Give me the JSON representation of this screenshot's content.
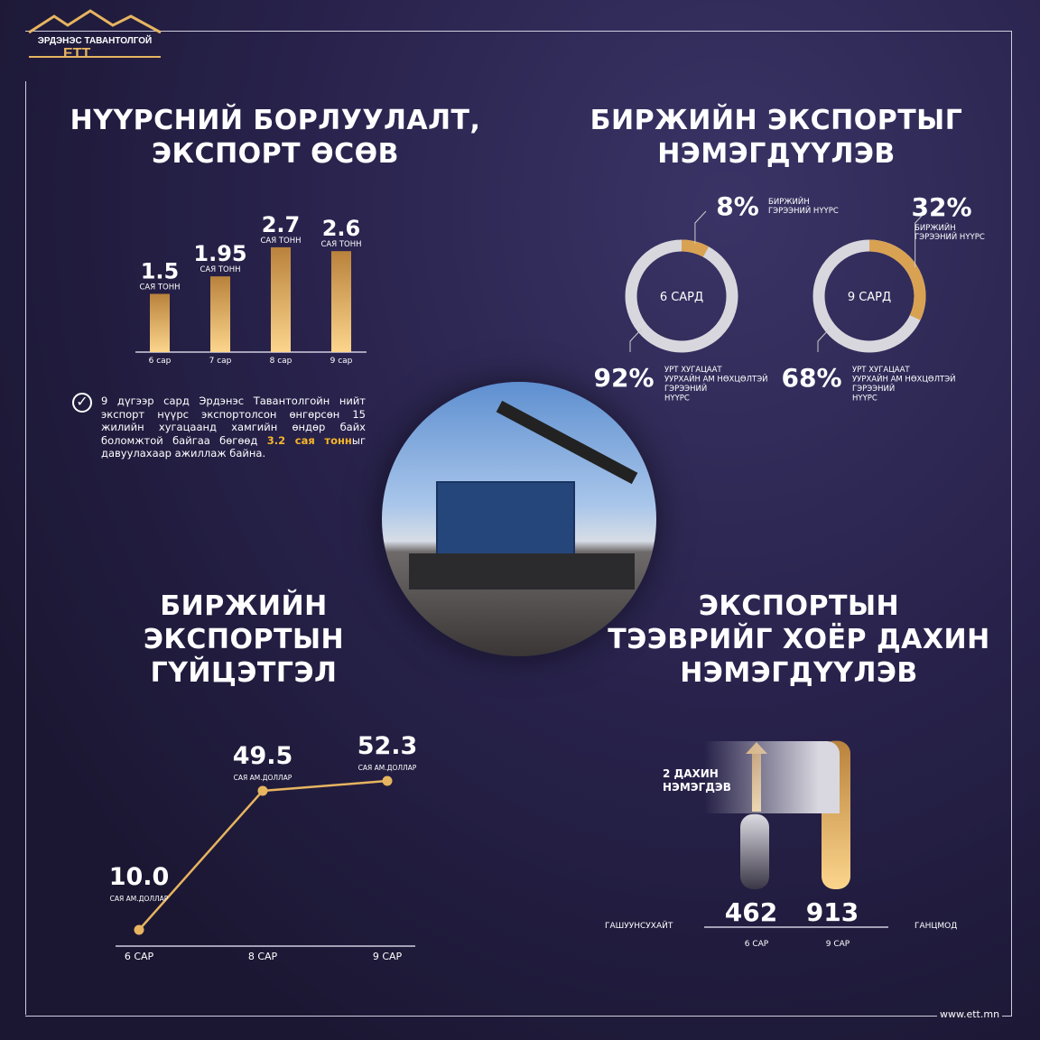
{
  "logo": {
    "name": "ЭРДЭНЭС ТАВАНТОЛГОЙ",
    "abbr": "ЕТТ"
  },
  "colors": {
    "gold": "#e7b460",
    "gold_light": "#fcd58c",
    "gold_dark": "#b9823c",
    "background": "#221d3d",
    "grey": "#c9c8d0"
  },
  "section1": {
    "title_line1": "НҮҮРСНИЙ БОРЛУУЛАЛТ,",
    "title_line2": "ЭКСПОРТ ӨСӨВ",
    "note_before": "9 дүгээр сард Эрдэнэс Тавантолгойн нийт экспорт нүүрс экспортолсон өнгөрсөн 15 жилийн хугацаанд хамгийн өндөр байх боломжтой байгаа бөгөөд ",
    "note_highlight": "3.2 сая тонн",
    "note_after": "ыг давуулахаар ажиллаж байна.",
    "check_icon": "check-circle-icon"
  },
  "section2": {
    "title_line1": "БИРЖИЙН ЭКСПОРТЫГ",
    "title_line2": "НЭМЭГДҮҮЛЭВ"
  },
  "section3": {
    "title_line1": "БИРЖИЙН",
    "title_line2": "ЭКСПОРТЫН",
    "title_line3": "ГҮЙЦЭТГЭЛ"
  },
  "section4": {
    "title_line1": "ЭКСПОРТЫН",
    "title_line2": "ТЭЭВРИЙГ ХОЁР ДАХИН",
    "title_line3": "НЭМЭГДҮҮЛЭВ",
    "callout_line1": "2 ДАХИН",
    "callout_line2": "НЭМЭГДЭВ",
    "left_label": "ГАШУУНСУХАЙТ",
    "right_label": "ГАНЦМОД"
  },
  "footer": {
    "website": "www.ett.mn"
  },
  "chart_data": [
    {
      "type": "bar",
      "categories": [
        "6 сар",
        "7 сар",
        "8 сар",
        "9 сар"
      ],
      "values": [
        1.5,
        1.95,
        2.7,
        2.6
      ],
      "value_labels": [
        "1.5",
        "1.95",
        "2.7",
        "2.6"
      ],
      "unit": "САЯ ТОНН"
    },
    {
      "type": "pie",
      "variant": "donut",
      "center_label": "6 САРД",
      "slices": [
        {
          "value": 8,
          "label": "8%",
          "name": "БИРЖИЙН ГЭРЭЭНИЙ НҮҮРС",
          "color": "#d9a253"
        },
        {
          "value": 92,
          "label": "92%",
          "name": "УРТ ХУГАЦААТ УУРХАЙН АМ НӨХЦӨЛТЭЙ ГЭРЭЭНИЙ НҮҮРС",
          "color": "#d8d7de"
        }
      ]
    },
    {
      "type": "pie",
      "variant": "donut",
      "center_label": "9 САРД",
      "slices": [
        {
          "value": 32,
          "label": "32%",
          "name": "БИРЖИЙН ГЭРЭЭНИЙ НҮҮРС",
          "color": "#d9a253"
        },
        {
          "value": 68,
          "label": "68%",
          "name": "УРТ ХУГАЦААТ УУРХАЙН АМ НӨХЦӨЛТЭЙ ГЭРЭЭНИЙ НҮҮРС",
          "color": "#d8d7de"
        }
      ]
    },
    {
      "type": "line",
      "categories": [
        "6 САР",
        "8 САР",
        "9 САР"
      ],
      "values": [
        10.0,
        49.5,
        52.3
      ],
      "value_labels": [
        "10.0",
        "49.5",
        "52.3"
      ],
      "unit": "САЯ АМ.ДОЛЛАР"
    },
    {
      "type": "bar",
      "categories": [
        "6 САР",
        "9 САР"
      ],
      "values": [
        462,
        913
      ],
      "value_labels": [
        "462",
        "913"
      ]
    }
  ]
}
